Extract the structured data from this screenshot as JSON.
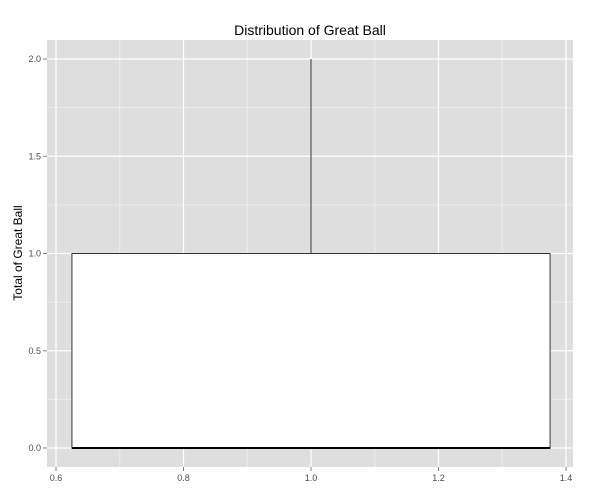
{
  "chart_data": {
    "type": "boxplot",
    "title": "Distribution of Great Ball",
    "xlabel": "",
    "ylabel": "Total of Great Ball",
    "xlim": [
      0.6,
      1.4
    ],
    "ylim": [
      0.0,
      2.0
    ],
    "x_ticks": [
      "0.6",
      "0.8",
      "1.0",
      "1.2",
      "1.4"
    ],
    "x_tick_values": [
      0.6,
      0.8,
      1.0,
      1.2,
      1.4
    ],
    "y_ticks": [
      "0.0",
      "0.5",
      "1.0",
      "1.5",
      "2.0"
    ],
    "y_tick_values": [
      0.0,
      0.5,
      1.0,
      1.5,
      2.0
    ],
    "grid": true,
    "box": {
      "x": 1.0,
      "x_left": 0.625,
      "x_right": 1.375,
      "min": 0.0,
      "q1": 0.0,
      "median": 0.0,
      "q3": 1.0,
      "max": 2.0
    },
    "colors": {
      "panel_bg": "#dedede",
      "grid_major": "#ffffff",
      "grid_minor": "#ececec",
      "box_fill": "#ffffff",
      "box_line": "#333333",
      "median_line": "#000000"
    }
  }
}
